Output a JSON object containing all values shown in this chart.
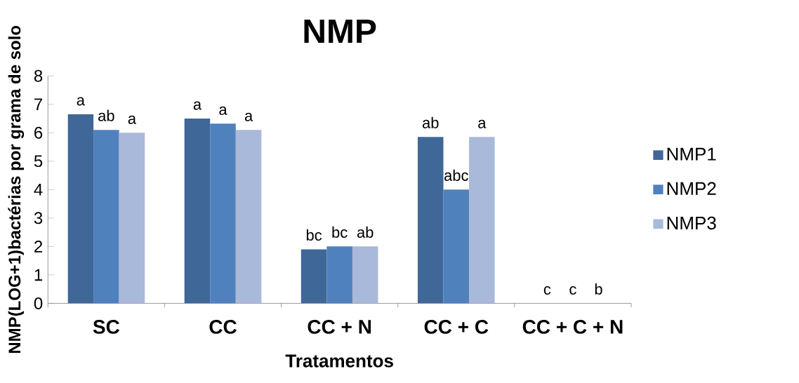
{
  "chart_data": {
    "type": "bar",
    "title": "NMP",
    "xlabel": "Tratamentos",
    "ylabel": "NMP(LOG+1)bactérias por grama de solo",
    "categories": [
      "SC",
      "CC",
      "CC + N",
      "CC + C",
      "CC + C + N"
    ],
    "series": [
      {
        "name": "NMP1",
        "color": "#3f6797",
        "values": [
          6.65,
          6.5,
          1.9,
          5.85,
          0
        ]
      },
      {
        "name": "NMP2",
        "color": "#4f81bd",
        "values": [
          6.1,
          6.32,
          2.0,
          4.0,
          0
        ]
      },
      {
        "name": "NMP3",
        "color": "#a9b9d9",
        "values": [
          6.0,
          6.1,
          2.0,
          5.85,
          0
        ]
      }
    ],
    "ylim": [
      0,
      8
    ],
    "yticks": [
      0,
      1,
      2,
      3,
      4,
      5,
      6,
      7,
      8
    ],
    "legend": "right",
    "grid": false,
    "annotations": [
      "a",
      "ab",
      "a",
      "a",
      "a",
      "a",
      "bc",
      "bc",
      "ab",
      "ab",
      "abc",
      "a",
      "c",
      "c",
      "b"
    ]
  }
}
